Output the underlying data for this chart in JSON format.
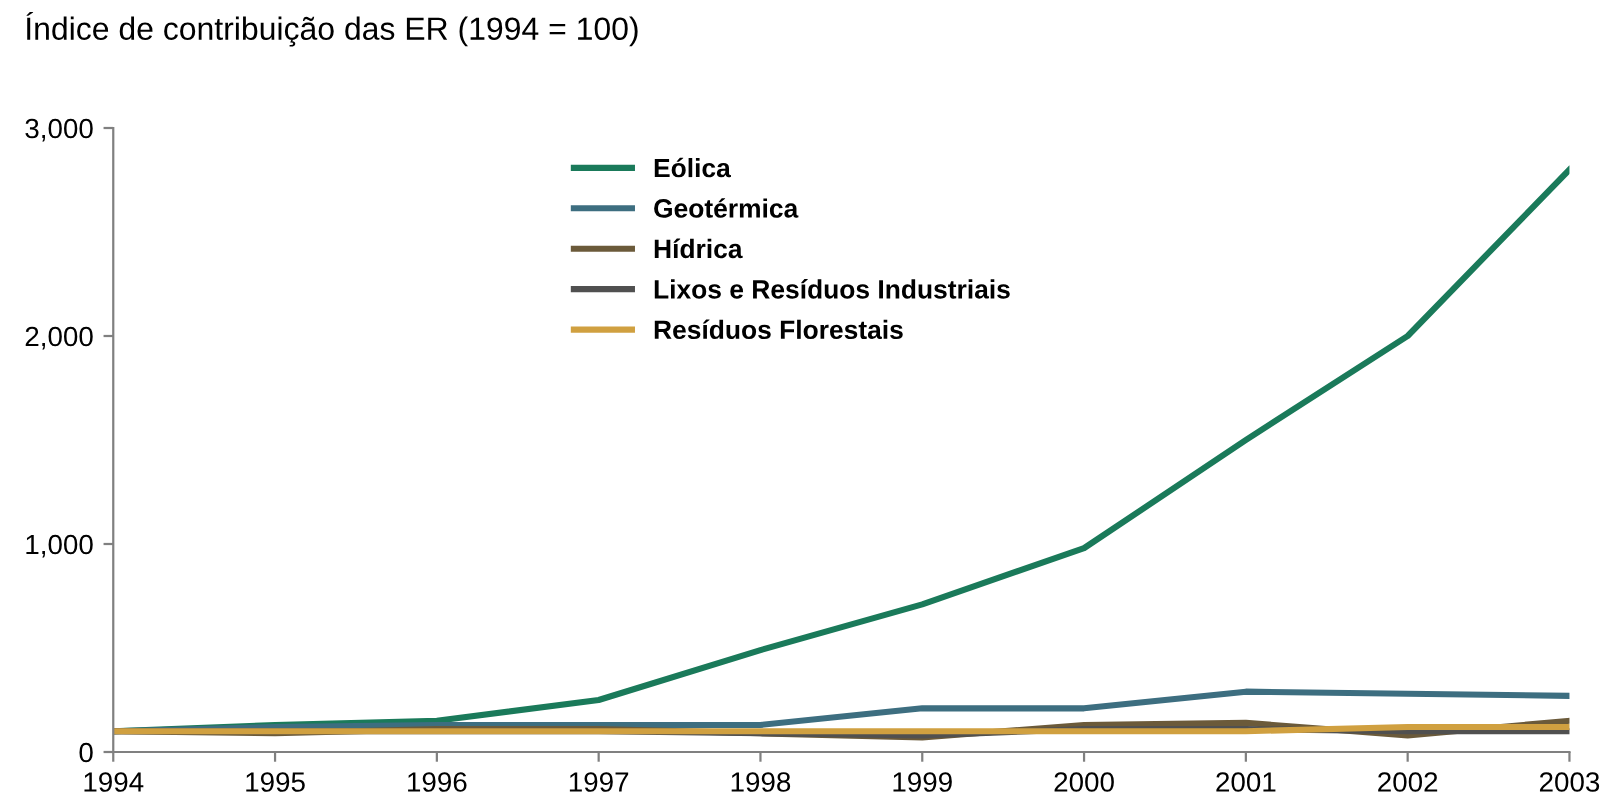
{
  "chart_data": {
    "type": "line",
    "title": "Índice de contribuição das ER (1994 = 100)",
    "x": [
      1994,
      1995,
      1996,
      1997,
      1998,
      1999,
      2000,
      2001,
      2002,
      2003
    ],
    "xlim": [
      1994,
      2003
    ],
    "xticks": [
      1994,
      1995,
      1996,
      1997,
      1998,
      1999,
      2000,
      2001,
      2002,
      2003
    ],
    "ylim": [
      0,
      3000
    ],
    "yticks": [
      {
        "value": 0,
        "label": "0"
      },
      {
        "value": 1000,
        "label": "1,000"
      },
      {
        "value": 2000,
        "label": "2,000"
      },
      {
        "value": 3000,
        "label": "3,000"
      }
    ],
    "grid": false,
    "legend": "top",
    "marker": "none",
    "line_style": "solid",
    "series": [
      {
        "name": "Eólica",
        "color": "#1a7a5a",
        "values": [
          100,
          130,
          150,
          250,
          490,
          710,
          980,
          1500,
          2000,
          2800
        ]
      },
      {
        "name": "Geotérmica",
        "color": "#3d6e80",
        "values": [
          100,
          120,
          130,
          130,
          130,
          210,
          210,
          290,
          280,
          270
        ]
      },
      {
        "name": "Hídrica",
        "color": "#6b5a3a",
        "values": [
          100,
          90,
          110,
          110,
          90,
          70,
          130,
          140,
          80,
          150
        ]
      },
      {
        "name": "Lixos e Resíduos Industriais",
        "color": "#505050",
        "values": [
          100,
          100,
          100,
          100,
          90,
          80,
          110,
          110,
          100,
          100
        ]
      },
      {
        "name": "Resíduos Florestais",
        "color": "#d0a040",
        "values": [
          100,
          100,
          100,
          100,
          100,
          100,
          100,
          100,
          120,
          120
        ]
      }
    ]
  }
}
